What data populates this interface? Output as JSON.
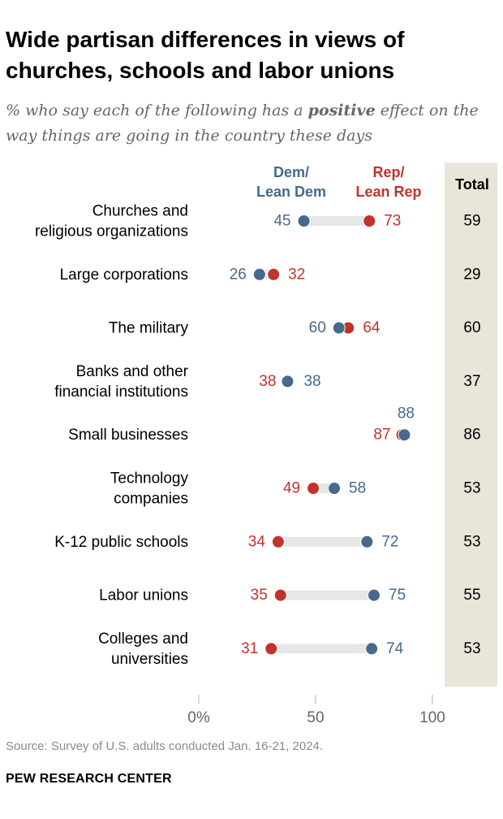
{
  "title": "Wide partisan differences in views of churches, schools and labor unions",
  "subtitle_pre": "% who say each of the following has a ",
  "subtitle_em": "positive",
  "subtitle_post": " effect on the way things are going in the country these days",
  "legend": {
    "dem_line1": "Dem/",
    "dem_line2": "Lean Dem",
    "rep_line1": "Rep/",
    "rep_line2": "Lean Rep",
    "total": "Total"
  },
  "colors": {
    "dem": "#46698c",
    "rep": "#c0332b",
    "connector": "#e6e6e6",
    "total_bg": "#e8e6d8",
    "axis_text": "#666666"
  },
  "chart_data": {
    "type": "dot-plot",
    "categories": [
      [
        "Churches and",
        "religious organizations"
      ],
      [
        "Large corporations"
      ],
      [
        "The military"
      ],
      [
        "Banks and other",
        "financial institutions"
      ],
      [
        "Small businesses"
      ],
      [
        "Technology",
        "companies"
      ],
      [
        "K-12 public schools"
      ],
      [
        "Labor unions"
      ],
      [
        "Colleges and",
        "universities"
      ]
    ],
    "series": [
      {
        "name": "Dem/Lean Dem",
        "values": [
          45,
          26,
          60,
          38,
          88,
          58,
          72,
          75,
          74
        ]
      },
      {
        "name": "Rep/Lean Rep",
        "values": [
          73,
          32,
          64,
          38,
          87,
          49,
          34,
          35,
          31
        ]
      }
    ],
    "total": [
      59,
      29,
      60,
      37,
      86,
      53,
      53,
      55,
      53
    ],
    "xlim": [
      0,
      100
    ],
    "xticks": [
      0,
      50,
      100
    ],
    "xtick_labels": [
      "0%",
      "50",
      "100"
    ]
  },
  "source": "Source: Survey of U.S. adults conducted Jan. 16-21, 2024.",
  "brand": "PEW RESEARCH CENTER"
}
